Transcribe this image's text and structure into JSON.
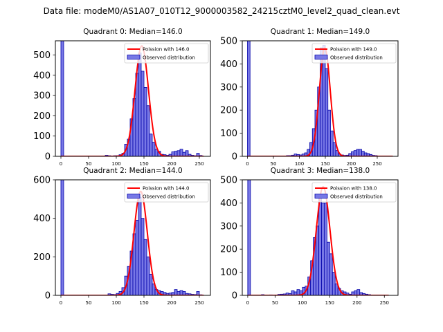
{
  "suptitle": "Data file: modeM0/AS1A07_010T12_9000003582_24215cztM0_level2_quad_clean.evt",
  "colors": {
    "bar_fill": "#7878e6",
    "bar_edge": "#0000a8",
    "fit_line": "#ff0000",
    "axes": "#000000"
  },
  "chart_data": [
    {
      "type": "bar",
      "title": "Quadrant 0: Median=146.0",
      "legend": [
        "Poission with 146.0",
        "Observed distribution"
      ],
      "xlim": [
        -10,
        270
      ],
      "ylim": [
        0,
        570
      ],
      "xticks": [
        0,
        50,
        100,
        150,
        200,
        250
      ],
      "yticks": [
        0,
        100,
        200,
        300,
        400,
        500
      ],
      "bin_width": 5,
      "bins": [
        [
          0,
          570
        ],
        [
          80,
          5
        ],
        [
          85,
          3
        ],
        [
          90,
          2
        ],
        [
          95,
          3
        ],
        [
          100,
          3
        ],
        [
          105,
          8
        ],
        [
          110,
          15
        ],
        [
          115,
          60
        ],
        [
          120,
          85
        ],
        [
          125,
          185
        ],
        [
          130,
          285
        ],
        [
          135,
          410
        ],
        [
          140,
          510
        ],
        [
          145,
          420
        ],
        [
          150,
          340
        ],
        [
          155,
          250
        ],
        [
          160,
          110
        ],
        [
          165,
          70
        ],
        [
          170,
          35
        ],
        [
          175,
          25
        ],
        [
          180,
          10
        ],
        [
          185,
          8
        ],
        [
          190,
          5
        ],
        [
          195,
          10
        ],
        [
          200,
          22
        ],
        [
          205,
          25
        ],
        [
          210,
          28
        ],
        [
          215,
          35
        ],
        [
          220,
          20
        ],
        [
          225,
          28
        ],
        [
          230,
          10
        ],
        [
          235,
          5
        ],
        [
          240,
          3
        ],
        [
          245,
          15
        ],
        [
          250,
          4
        ]
      ],
      "fit": {
        "mean": 146.0,
        "peak": 545,
        "sigma": 12.1,
        "range": [
          0,
          258
        ]
      }
    },
    {
      "type": "bar",
      "title": "Quadrant 1: Median=149.0",
      "legend": [
        "Poission with 149.0",
        "Observed distribution"
      ],
      "xlim": [
        -10,
        290
      ],
      "ylim": [
        0,
        500
      ],
      "xticks": [
        0,
        50,
        100,
        150,
        200,
        250
      ],
      "yticks": [
        0,
        100,
        200,
        300,
        400,
        500
      ],
      "bin_width": 5,
      "bins": [
        [
          0,
          500
        ],
        [
          75,
          3
        ],
        [
          80,
          3
        ],
        [
          85,
          5
        ],
        [
          90,
          10
        ],
        [
          95,
          8
        ],
        [
          100,
          6
        ],
        [
          105,
          10
        ],
        [
          110,
          15
        ],
        [
          115,
          30
        ],
        [
          120,
          60
        ],
        [
          125,
          120
        ],
        [
          130,
          200
        ],
        [
          135,
          300
        ],
        [
          140,
          470
        ],
        [
          145,
          480
        ],
        [
          150,
          380
        ],
        [
          155,
          200
        ],
        [
          160,
          110
        ],
        [
          165,
          60
        ],
        [
          170,
          25
        ],
        [
          175,
          10
        ],
        [
          180,
          6
        ],
        [
          185,
          4
        ],
        [
          190,
          5
        ],
        [
          195,
          12
        ],
        [
          200,
          20
        ],
        [
          205,
          25
        ],
        [
          210,
          30
        ],
        [
          215,
          30
        ],
        [
          220,
          22
        ],
        [
          225,
          15
        ],
        [
          230,
          12
        ],
        [
          235,
          8
        ],
        [
          240,
          4
        ],
        [
          245,
          3
        ]
      ],
      "fit": {
        "mean": 149.0,
        "peak": 470,
        "sigma": 10.5,
        "range": [
          0,
          280
        ]
      }
    },
    {
      "type": "bar",
      "title": "Quadrant 2: Median=144.0",
      "legend": [
        "Poission with 144.0",
        "Observed distribution"
      ],
      "xlim": [
        -10,
        270
      ],
      "ylim": [
        0,
        600
      ],
      "xticks": [
        0,
        50,
        100,
        150,
        200,
        250
      ],
      "yticks": [
        0,
        200,
        400,
        600
      ],
      "bin_width": 5,
      "bins": [
        [
          0,
          600
        ],
        [
          85,
          8
        ],
        [
          90,
          5
        ],
        [
          95,
          4
        ],
        [
          100,
          10
        ],
        [
          105,
          20
        ],
        [
          110,
          40
        ],
        [
          115,
          100
        ],
        [
          120,
          150
        ],
        [
          125,
          230
        ],
        [
          130,
          320
        ],
        [
          135,
          390
        ],
        [
          140,
          510
        ],
        [
          145,
          400
        ],
        [
          150,
          290
        ],
        [
          155,
          200
        ],
        [
          160,
          110
        ],
        [
          165,
          60
        ],
        [
          170,
          30
        ],
        [
          175,
          25
        ],
        [
          180,
          20
        ],
        [
          185,
          15
        ],
        [
          190,
          10
        ],
        [
          195,
          12
        ],
        [
          200,
          15
        ],
        [
          205,
          30
        ],
        [
          210,
          20
        ],
        [
          215,
          25
        ],
        [
          220,
          20
        ],
        [
          225,
          10
        ],
        [
          230,
          8
        ],
        [
          235,
          5
        ],
        [
          240,
          4
        ],
        [
          245,
          20
        ],
        [
          250,
          3
        ]
      ],
      "fit": {
        "mean": 144.0,
        "peak": 540,
        "sigma": 12.0,
        "range": [
          0,
          258
        ]
      }
    },
    {
      "type": "bar",
      "title": "Quadrant 3: Median=138.0",
      "legend": [
        "Poission with 138.0",
        "Observed distribution"
      ],
      "xlim": [
        -10,
        275
      ],
      "ylim": [
        0,
        500
      ],
      "xticks": [
        0,
        50,
        100,
        150,
        200,
        250
      ],
      "yticks": [
        0,
        100,
        200,
        300,
        400,
        500
      ],
      "bin_width": 5,
      "bins": [
        [
          0,
          500
        ],
        [
          25,
          3
        ],
        [
          40,
          2
        ],
        [
          55,
          4
        ],
        [
          60,
          5
        ],
        [
          65,
          6
        ],
        [
          70,
          10
        ],
        [
          75,
          8
        ],
        [
          80,
          20
        ],
        [
          85,
          15
        ],
        [
          90,
          25
        ],
        [
          95,
          20
        ],
        [
          100,
          35
        ],
        [
          105,
          40
        ],
        [
          110,
          80
        ],
        [
          115,
          150
        ],
        [
          120,
          250
        ],
        [
          125,
          300
        ],
        [
          130,
          420
        ],
        [
          135,
          400
        ],
        [
          140,
          400
        ],
        [
          145,
          230
        ],
        [
          150,
          180
        ],
        [
          155,
          100
        ],
        [
          160,
          50
        ],
        [
          165,
          30
        ],
        [
          170,
          20
        ],
        [
          175,
          15
        ],
        [
          180,
          10
        ],
        [
          185,
          5
        ],
        [
          190,
          15
        ],
        [
          195,
          20
        ],
        [
          200,
          25
        ],
        [
          205,
          12
        ],
        [
          210,
          8
        ],
        [
          215,
          5
        ],
        [
          220,
          3
        ]
      ],
      "fit": {
        "mean": 138.0,
        "peak": 470,
        "sigma": 12.5,
        "range": [
          0,
          258
        ]
      }
    }
  ]
}
